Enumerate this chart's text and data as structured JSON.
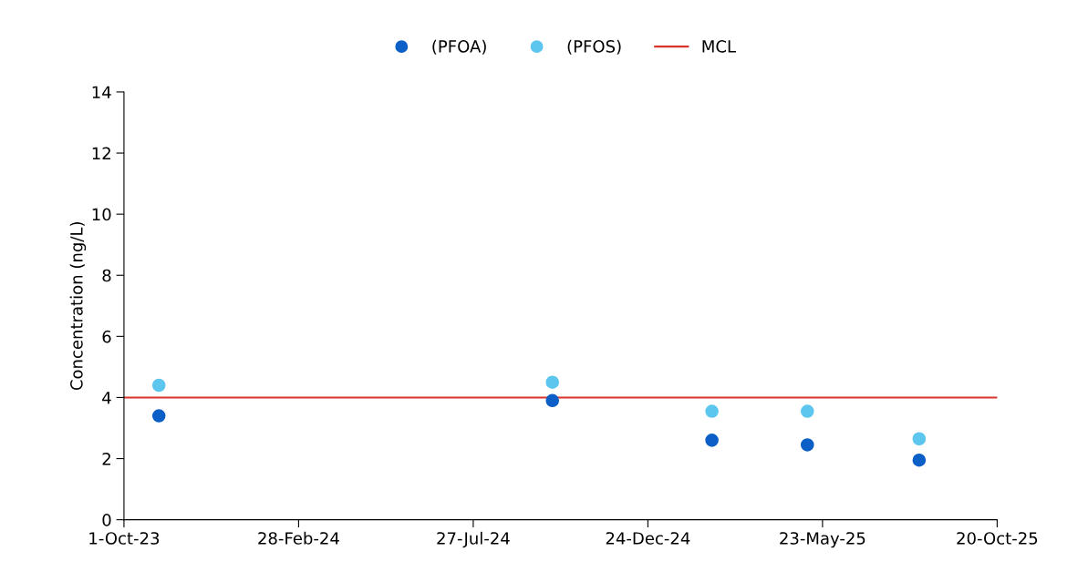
{
  "chart_data": {
    "type": "scatter",
    "ylabel": "Concentration (ng/L)",
    "series": [
      {
        "name": "(PFOA)",
        "color": "#0b5fc6",
        "x": [
          "2023-10-31",
          "2024-10-03",
          "2025-02-17",
          "2025-05-10",
          "2025-08-14"
        ],
        "values": [
          3.4,
          3.9,
          2.6,
          2.45,
          1.95
        ]
      },
      {
        "name": "(PFOS)",
        "color": "#5cc6ef",
        "x": [
          "2023-10-31",
          "2024-10-03",
          "2025-02-17",
          "2025-05-10",
          "2025-08-14"
        ],
        "values": [
          4.4,
          4.5,
          3.55,
          3.55,
          2.65
        ]
      },
      {
        "name": "MCL",
        "type": "line",
        "color": "#d9342b",
        "marker": "none",
        "x": [
          "2023-10-01",
          "2025-10-20"
        ],
        "values": [
          4,
          4
        ]
      }
    ],
    "xlim": [
      "2023-10-01",
      "2025-10-20"
    ],
    "xticks": [
      {
        "value": "2023-10-01",
        "label": "1-Oct-23"
      },
      {
        "value": "2024-02-28",
        "label": "28-Feb-24"
      },
      {
        "value": "2024-07-27",
        "label": "27-Jul-24"
      },
      {
        "value": "2024-12-24",
        "label": "24-Dec-24"
      },
      {
        "value": "2025-05-23",
        "label": "23-May-25"
      },
      {
        "value": "2025-10-20",
        "label": "20-Oct-25"
      }
    ],
    "ylim": [
      0,
      14
    ],
    "yticks": [
      0,
      2,
      4,
      6,
      8,
      10,
      12,
      14
    ],
    "marker": "circle",
    "legend": "top",
    "grid": false
  }
}
